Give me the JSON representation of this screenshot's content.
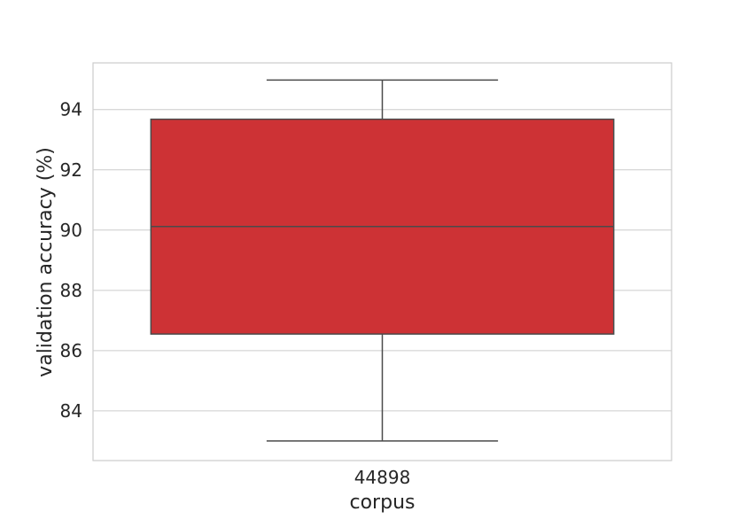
{
  "chart_data": {
    "type": "box",
    "title": "",
    "xlabel": "corpus",
    "ylabel": "validation accuracy (%)",
    "categories": [
      "44898"
    ],
    "boxes": [
      {
        "category": "44898",
        "whisker_low": 83.0,
        "q1": 86.55,
        "median": 90.12,
        "q3": 93.68,
        "whisker_high": 94.98
      }
    ],
    "ylim": [
      82.35,
      95.55
    ],
    "yticks": [
      84,
      86,
      88,
      90,
      92,
      94
    ],
    "grid": true,
    "colors": {
      "box_fill": "#cd3235",
      "line": "#4a4a4a",
      "grid": "#cccccc",
      "frame": "#cccccc"
    }
  }
}
